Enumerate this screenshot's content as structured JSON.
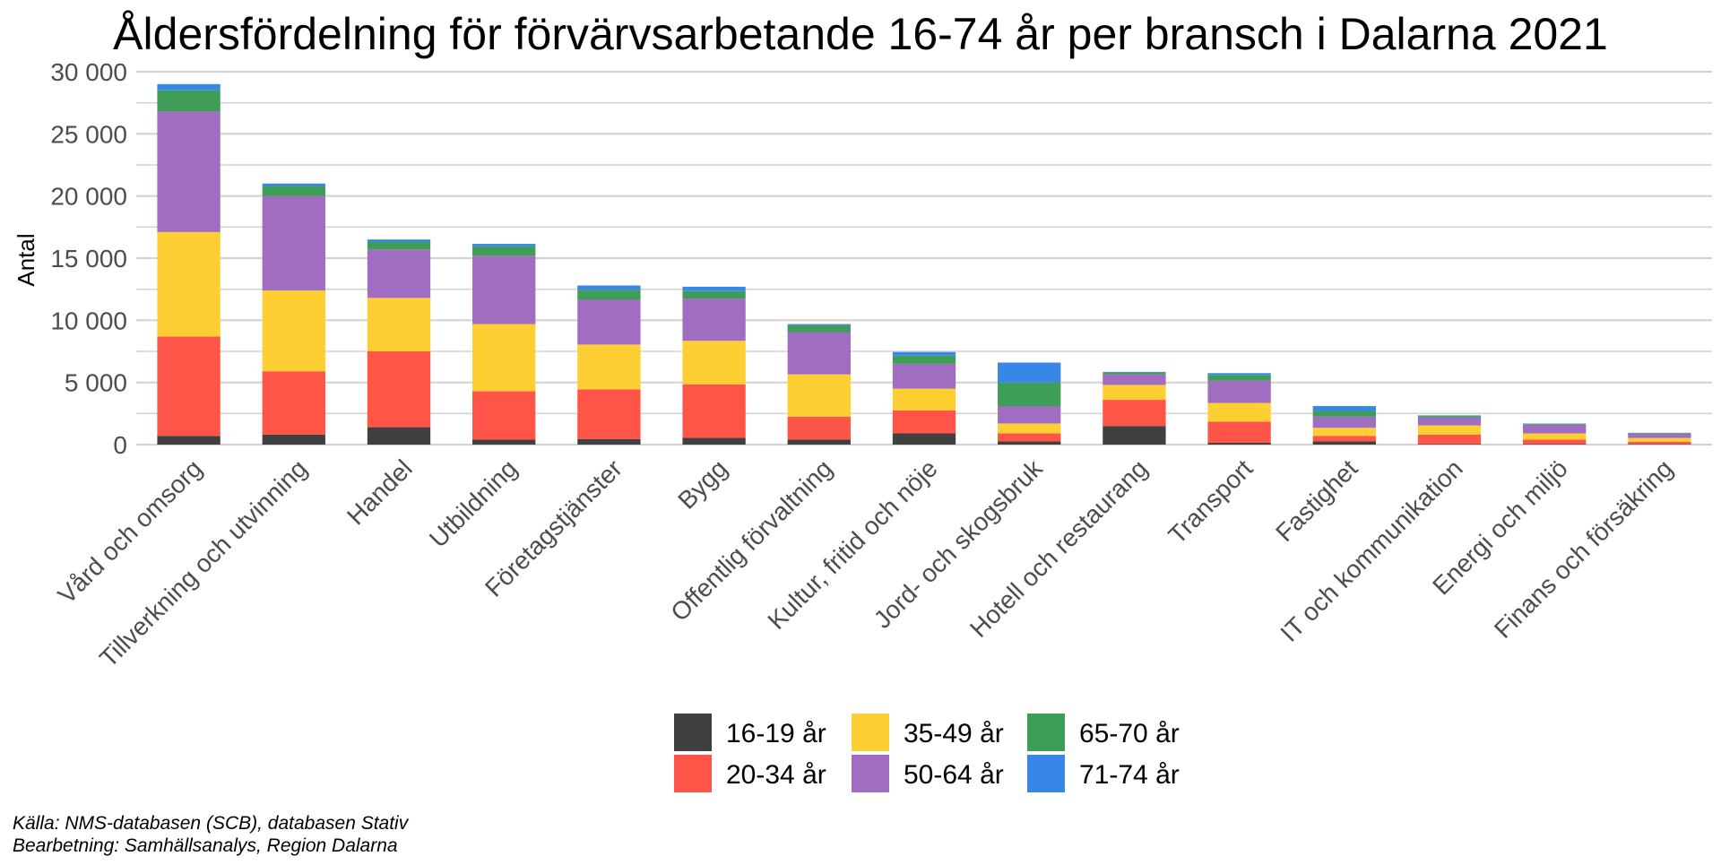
{
  "chart_data": {
    "type": "bar",
    "stacked": true,
    "title": "Åldersfördelning för förvärvsarbetande 16-74 år per bransch i Dalarna  2021",
    "ylabel": "Antal",
    "xlabel": "",
    "ylim": [
      0,
      30000
    ],
    "yticks": [
      0,
      5000,
      10000,
      15000,
      20000,
      25000,
      30000
    ],
    "ytick_labels": [
      "0",
      "5 000",
      "10 000",
      "15 000",
      "20 000",
      "25 000",
      "30 000"
    ],
    "grid": true,
    "legend_position": "bottom",
    "categories": [
      "Vård och omsorg",
      "Tillverkning och utvinning",
      "Handel",
      "Utbildning",
      "Företagstjänster",
      "Bygg",
      "Offentlig förvaltning",
      "Kultur, fritid och nöje",
      "Jord- och skogsbruk",
      "Hotell och restaurang",
      "Transport",
      "Fastighet",
      "IT och kommunikation",
      "Energi och miljö",
      "Finans och försäkring"
    ],
    "series": [
      {
        "name": "16-19 år",
        "color": "#404040",
        "values": [
          700,
          800,
          1400,
          400,
          450,
          550,
          400,
          900,
          250,
          1500,
          150,
          250,
          50,
          50,
          30
        ]
      },
      {
        "name": "20-34 år",
        "color": "#ff5548",
        "values": [
          8000,
          5100,
          6100,
          3900,
          4000,
          4300,
          1850,
          1850,
          650,
          2100,
          1700,
          450,
          750,
          350,
          200
        ]
      },
      {
        "name": "35-49 år",
        "color": "#fdcf33",
        "values": [
          8400,
          6500,
          4300,
          5400,
          3600,
          3500,
          3400,
          1750,
          800,
          1200,
          1500,
          650,
          750,
          500,
          300
        ]
      },
      {
        "name": "50-64 år",
        "color": "#a06dc1",
        "values": [
          9700,
          7600,
          3900,
          5500,
          3600,
          3400,
          3400,
          2000,
          1400,
          850,
          1800,
          900,
          650,
          700,
          350
        ]
      },
      {
        "name": "65-70 år",
        "color": "#3e9e57",
        "values": [
          1700,
          800,
          600,
          750,
          800,
          600,
          550,
          650,
          1900,
          150,
          450,
          450,
          100,
          80,
          60
        ]
      },
      {
        "name": "71-74 år",
        "color": "#3887e6",
        "values": [
          500,
          200,
          200,
          200,
          350,
          350,
          100,
          300,
          1600,
          50,
          150,
          400,
          50,
          20,
          10
        ]
      }
    ]
  },
  "caption": {
    "source": "Källa: NMS-databasen (SCB), databasen Stativ",
    "processing": "Bearbetning: Samhällsanalys, Region Dalarna"
  }
}
